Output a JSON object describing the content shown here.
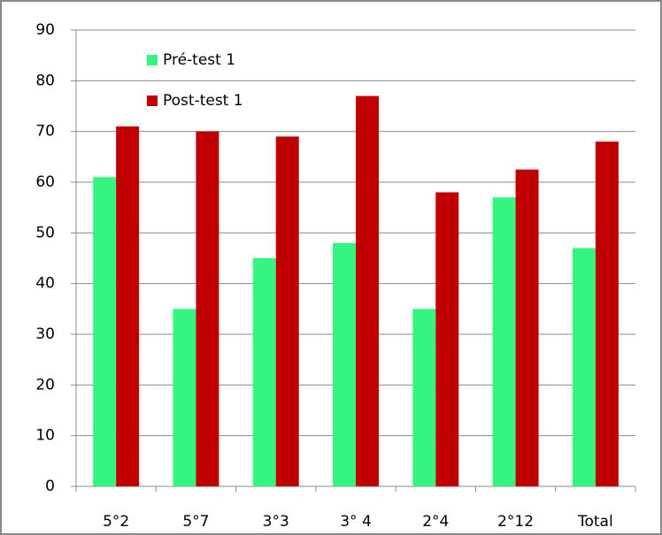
{
  "chart_data": {
    "type": "bar",
    "categories": [
      "5°2",
      "5°7",
      "3°3",
      "3° 4",
      "2°4",
      "2°12",
      "Total"
    ],
    "series": [
      {
        "name": "Pré-test 1",
        "color": "#33f57f",
        "values": [
          61,
          35,
          45,
          48,
          35,
          57,
          47
        ]
      },
      {
        "name": "Post-test 1",
        "color": "#c00000",
        "values": [
          71,
          70,
          69,
          77,
          58,
          62.5,
          68
        ]
      }
    ],
    "ylim": [
      0,
      90
    ],
    "yticks": [
      0,
      10,
      20,
      30,
      40,
      50,
      60,
      70,
      80,
      90
    ],
    "grid": true,
    "legend": "top-left"
  }
}
